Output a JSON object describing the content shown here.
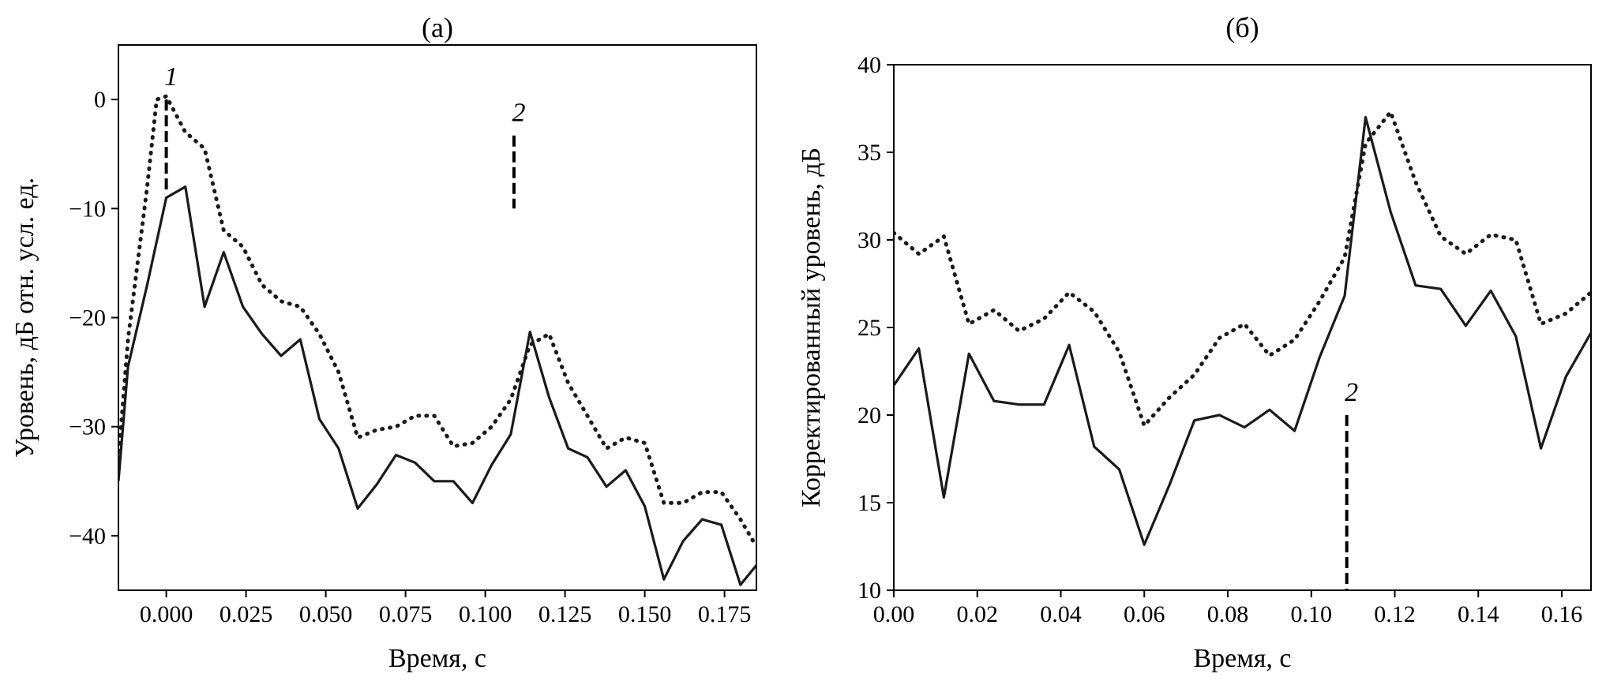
{
  "chart_data": [
    {
      "type": "line",
      "title": "(а)",
      "xlabel": "Время, с",
      "ylabel": "Уровень, дБ отн. усл. ед.",
      "xlim": [
        -0.015,
        0.185
      ],
      "ylim": [
        -45,
        5
      ],
      "xticks": [
        0.0,
        0.025,
        0.05,
        0.075,
        0.1,
        0.125,
        0.15,
        0.175
      ],
      "xtick_labels": [
        "0.000",
        "0.025",
        "0.050",
        "0.075",
        "0.100",
        "0.125",
        "0.150",
        "0.175"
      ],
      "yticks": [
        0,
        -10,
        -20,
        -30,
        -40
      ],
      "ytick_labels": [
        "0",
        "−10",
        "−20",
        "−30",
        "−40"
      ],
      "grid": false,
      "series": [
        {
          "style": "solid",
          "x": [
            -0.015,
            -0.012,
            -0.006,
            0.0,
            0.006,
            0.012,
            0.018,
            0.024,
            0.03,
            0.036,
            0.042,
            0.048,
            0.054,
            0.06,
            0.066,
            0.072,
            0.078,
            0.084,
            0.09,
            0.096,
            0.102,
            0.108,
            0.114,
            0.12,
            0.126,
            0.132,
            0.138,
            0.144,
            0.15,
            0.156,
            0.162,
            0.168,
            0.174,
            0.18,
            0.185
          ],
          "y": [
            -35,
            -24.5,
            -17,
            -9,
            -8,
            -19,
            -14,
            -19,
            -21.5,
            -23.5,
            -22,
            -29.3,
            -32,
            -37.5,
            -35.3,
            -32.6,
            -33.3,
            -35,
            -35,
            -37,
            -33.5,
            -30.7,
            -21.3,
            -27.3,
            -32,
            -32.8,
            -35.5,
            -34,
            -37.3,
            -44,
            -40.5,
            -38.5,
            -39,
            -44.5,
            -42.7
          ]
        },
        {
          "style": "dotted",
          "x": [
            -0.015,
            -0.012,
            -0.006,
            -0.003,
            0.0,
            0.006,
            0.012,
            0.018,
            0.024,
            0.03,
            0.036,
            0.042,
            0.048,
            0.054,
            0.06,
            0.066,
            0.072,
            0.078,
            0.084,
            0.09,
            0.096,
            0.102,
            0.108,
            0.114,
            0.12,
            0.126,
            0.132,
            0.138,
            0.144,
            0.15,
            0.156,
            0.162,
            0.168,
            0.174,
            0.18,
            0.185
          ],
          "y": [
            -33,
            -22,
            -8,
            0,
            0.3,
            -3,
            -4.5,
            -12,
            -13.5,
            -17,
            -18.5,
            -19,
            -21.5,
            -25,
            -31,
            -30.3,
            -30,
            -29,
            -29,
            -31.8,
            -31.5,
            -30,
            -27.5,
            -22.5,
            -21.5,
            -26,
            -29,
            -32,
            -31,
            -31.5,
            -37,
            -37,
            -36,
            -36,
            -38.5,
            -41
          ]
        }
      ],
      "annotations": [
        {
          "label": "1",
          "x": 0.0,
          "y_range": [
            -8.5,
            0
          ]
        },
        {
          "label": "2",
          "x": 0.109,
          "y_range": [
            -10,
            -3.3
          ]
        }
      ]
    },
    {
      "type": "line",
      "title": "(б)",
      "xlabel": "Время, с",
      "ylabel": "Корректированный уровень, дБ",
      "xlim": [
        0.0,
        0.167
      ],
      "ylim": [
        10,
        40
      ],
      "xticks": [
        0.0,
        0.02,
        0.04,
        0.06,
        0.08,
        0.1,
        0.12,
        0.14,
        0.16
      ],
      "xtick_labels": [
        "0.00",
        "0.02",
        "0.04",
        "0.06",
        "0.08",
        "0.10",
        "0.12",
        "0.14",
        "0.16"
      ],
      "yticks": [
        10,
        15,
        20,
        25,
        30,
        35,
        40
      ],
      "ytick_labels": [
        "10",
        "15",
        "20",
        "25",
        "30",
        "35",
        "40"
      ],
      "grid": false,
      "series": [
        {
          "style": "solid",
          "x": [
            0.0,
            0.006,
            0.012,
            0.018,
            0.024,
            0.03,
            0.036,
            0.042,
            0.048,
            0.054,
            0.06,
            0.066,
            0.072,
            0.078,
            0.084,
            0.09,
            0.096,
            0.102,
            0.108,
            0.113,
            0.119,
            0.125,
            0.131,
            0.137,
            0.143,
            0.149,
            0.155,
            0.161,
            0.167
          ],
          "y": [
            21.7,
            23.8,
            15.3,
            23.5,
            20.8,
            20.6,
            20.6,
            24.0,
            18.2,
            16.9,
            12.6,
            16.0,
            19.7,
            20.0,
            19.3,
            20.3,
            19.1,
            23.3,
            26.8,
            37.0,
            31.6,
            27.4,
            27.2,
            25.1,
            27.1,
            24.5,
            18.1,
            22.2,
            24.7
          ]
        },
        {
          "style": "dotted",
          "x": [
            0.0,
            0.006,
            0.012,
            0.018,
            0.024,
            0.03,
            0.036,
            0.042,
            0.048,
            0.054,
            0.06,
            0.066,
            0.072,
            0.078,
            0.084,
            0.09,
            0.096,
            0.102,
            0.108,
            0.113,
            0.119,
            0.125,
            0.131,
            0.137,
            0.143,
            0.149,
            0.155,
            0.161,
            0.167
          ],
          "y": [
            30.4,
            29.2,
            30.2,
            25.2,
            26.0,
            24.8,
            25.5,
            27.0,
            25.9,
            23.6,
            19.4,
            21.0,
            22.3,
            24.4,
            25.2,
            23.4,
            24.3,
            26.5,
            29.0,
            35.5,
            37.3,
            33.3,
            30.2,
            29.2,
            30.3,
            30.0,
            25.2,
            25.8,
            27.0
          ]
        }
      ],
      "annotations": [
        {
          "label": "2",
          "x": 0.1085,
          "y_range": [
            10,
            20
          ]
        }
      ]
    }
  ]
}
